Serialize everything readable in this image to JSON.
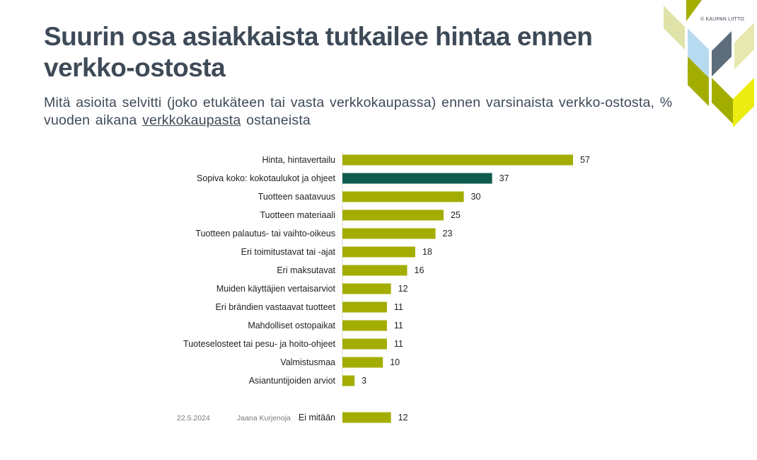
{
  "slide": {
    "title": "Suurin osa asiakkaista tutkailee hintaa ennen verkko-ostosta",
    "subtitle_before": "Mitä asioita selvitti (joko etukäteen tai vasta verkkokaupassa) ennen varsinaista verkko-ostosta, % vuoden aikana ",
    "subtitle_underlined": "verkkokaupasta",
    "subtitle_after": " ostaneista",
    "brand": "© KAUPAN LIITTO",
    "footer_date": "22.5.2024",
    "footer_author": "Jaana Kurjenoja"
  },
  "colors": {
    "bar": "#a3ad00",
    "highlight": "#105c4e",
    "title": "#3e4a57"
  },
  "chart_data": {
    "type": "bar",
    "orientation": "horizontal",
    "categories": [
      "Hinta, hintavertailu",
      "Sopiva koko: kokotaulukot ja ohjeet",
      "Tuotteen saatavuus",
      "Tuotteen materiaali",
      "Tuotteen palautus- tai vaihto-oikeus",
      "Eri toimitustavat tai -ajat",
      "Eri maksutavat",
      "Muiden käyttäjien vertaisarviot",
      "Eri brändien vastaavat tuotteet",
      "Mahdolliset ostopaikat",
      "Tuoteselosteet tai pesu- ja hoito-ohjeet",
      "Valmistusmaa",
      "Asiantuntijoiden arviot",
      "Ei mitään"
    ],
    "values": [
      57,
      37,
      30,
      25,
      23,
      18,
      16,
      12,
      11,
      11,
      11,
      10,
      3,
      12
    ],
    "highlighted_category": "Sopiva koko: kokotaulukot ja ohjeet",
    "data_labels": true,
    "xlim": [
      0,
      60
    ],
    "grid": false,
    "legend": "none"
  }
}
